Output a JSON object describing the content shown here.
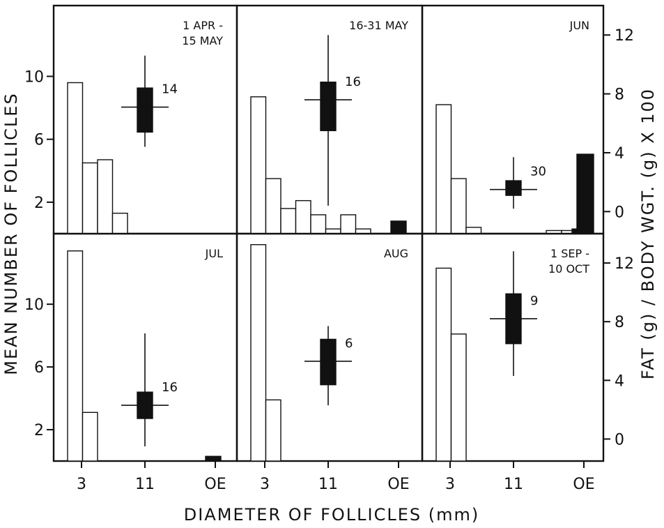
{
  "chart_data": {
    "type": "bar",
    "xlabel": "DIAMETER OF FOLLICLES (mm)",
    "ylabel_left": "MEAN NUMBER OF FOLLICLES",
    "ylabel_right": "FAT (g) / BODY WGT. (g) X 100",
    "x_tick_labels": [
      "3",
      "11",
      "OE"
    ],
    "left_y_ticks": [
      "2",
      "6",
      "10"
    ],
    "right_y_ticks": [
      "0",
      "4",
      "8",
      "12"
    ],
    "left_ylim": [
      0,
      14.5
    ],
    "right_ylim": [
      -1.5,
      14
    ],
    "panels": [
      {
        "title_lines": [
          "1 APR -",
          "15 MAY"
        ],
        "follicle_bars": [
          9.6,
          4.5,
          4.7,
          1.3,
          0,
          0,
          0,
          0,
          0,
          0
        ],
        "oe_bar": 0,
        "fat": {
          "mean": 7.1,
          "box_low": 5.4,
          "box_high": 8.4,
          "whisker_low": 4.4,
          "whisker_high": 10.6,
          "n": "14"
        }
      },
      {
        "title_lines": [
          "16-31 MAY"
        ],
        "follicle_bars": [
          8.7,
          3.5,
          1.6,
          2.1,
          1.2,
          0.3,
          1.2,
          0.3,
          0,
          0
        ],
        "oe_bar": 0.8,
        "fat": {
          "mean": 7.6,
          "box_low": 5.5,
          "box_high": 8.8,
          "whisker_low": 0.4,
          "whisker_high": 12.0,
          "n": "16"
        }
      },
      {
        "title_lines": [
          "JUN"
        ],
        "follicle_bars": [
          8.2,
          3.5,
          0.4,
          0,
          0,
          0,
          0,
          0,
          0,
          0
        ],
        "oe_bar": 0.3,
        "oe_small": [
          0.2,
          0.2
        ],
        "fat": {
          "mean": 1.5,
          "box_low": 1.1,
          "box_high": 2.1,
          "whisker_low": 0.2,
          "whisker_high": 3.7,
          "n": "30"
        },
        "fat_bar": 3.9
      },
      {
        "title_lines": [
          "JUL"
        ],
        "follicle_bars": [
          13.4,
          3.1,
          0,
          0,
          0,
          0,
          0,
          0,
          0,
          0
        ],
        "oe_bar": 0.3,
        "fat": {
          "mean": 2.3,
          "box_low": 1.4,
          "box_high": 3.2,
          "whisker_low": -0.5,
          "whisker_high": 7.2,
          "n": "16"
        }
      },
      {
        "title_lines": [
          "AUG"
        ],
        "follicle_bars": [
          13.8,
          3.9,
          0,
          0,
          0,
          0,
          0,
          0,
          0,
          0
        ],
        "oe_bar": 0,
        "fat": {
          "mean": 5.3,
          "box_low": 3.7,
          "box_high": 6.8,
          "whisker_low": 2.3,
          "whisker_high": 7.7,
          "n": "6"
        }
      },
      {
        "title_lines": [
          "1 SEP -",
          "10 OCT"
        ],
        "follicle_bars": [
          12.3,
          8.1,
          0,
          0,
          0,
          0,
          0,
          0,
          0,
          0
        ],
        "oe_bar": 0,
        "fat": {
          "mean": 8.2,
          "box_low": 6.5,
          "box_high": 9.9,
          "whisker_low": 4.3,
          "whisker_high": 12.8,
          "n": "9"
        }
      }
    ]
  }
}
